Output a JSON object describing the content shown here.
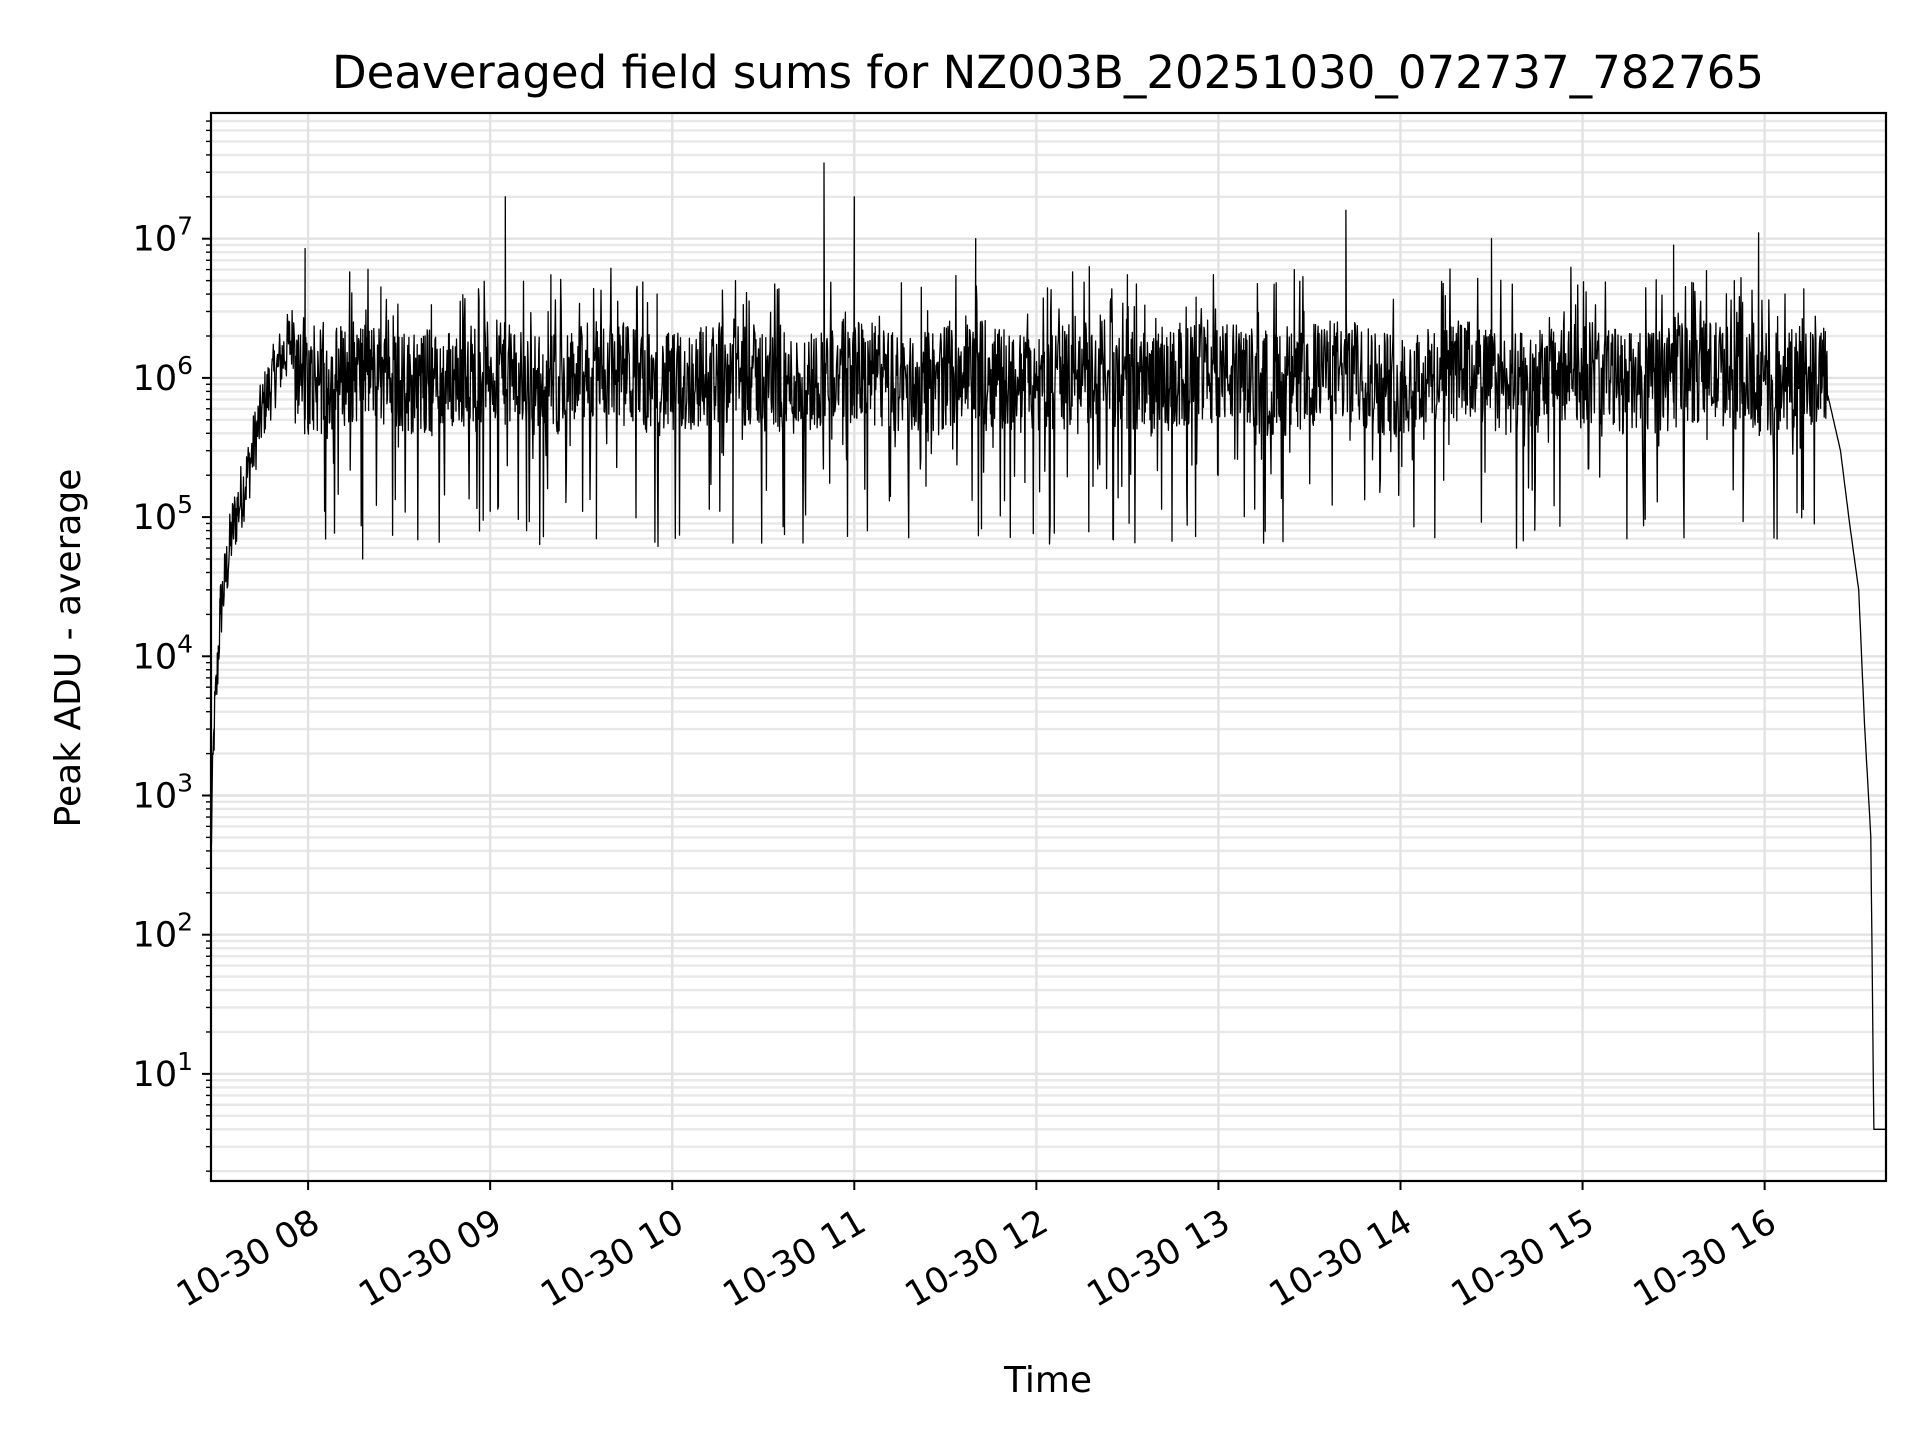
{
  "chart_data": {
    "type": "line",
    "title": "Deaveraged field sums for NZ003B_20251030_072737_782765",
    "xlabel": "Time",
    "ylabel": "Peak ADU - average",
    "y_scale": "log",
    "ylim": [
      1.7,
      80000000
    ],
    "xlim": [
      "2025-10-30T07:28",
      "2025-10-30T16:40"
    ],
    "grid": true,
    "x_ticks": [
      {
        "t": "2025-10-30T08:00",
        "label": "10-30 08"
      },
      {
        "t": "2025-10-30T09:00",
        "label": "10-30 09"
      },
      {
        "t": "2025-10-30T10:00",
        "label": "10-30 10"
      },
      {
        "t": "2025-10-30T11:00",
        "label": "10-30 11"
      },
      {
        "t": "2025-10-30T12:00",
        "label": "10-30 12"
      },
      {
        "t": "2025-10-30T13:00",
        "label": "10-30 13"
      },
      {
        "t": "2025-10-30T14:00",
        "label": "10-30 14"
      },
      {
        "t": "2025-10-30T15:00",
        "label": "10-30 15"
      },
      {
        "t": "2025-10-30T16:00",
        "label": "10-30 16"
      }
    ],
    "y_ticks": [
      {
        "value": 10,
        "base": "10",
        "exp": "1"
      },
      {
        "value": 100,
        "base": "10",
        "exp": "2"
      },
      {
        "value": 1000,
        "base": "10",
        "exp": "3"
      },
      {
        "value": 10000,
        "base": "10",
        "exp": "4"
      },
      {
        "value": 100000,
        "base": "10",
        "exp": "5"
      },
      {
        "value": 1000000,
        "base": "10",
        "exp": "6"
      },
      {
        "value": 10000000,
        "base": "10",
        "exp": "7"
      }
    ],
    "series": [
      {
        "color": "#000000",
        "points": [
          [
            "2025-10-30T07:28",
            400
          ],
          [
            "2025-10-30T07:29",
            3000
          ],
          [
            "2025-10-30T07:30",
            7000
          ],
          [
            "2025-10-30T07:31",
            20000
          ],
          [
            "2025-10-30T07:33",
            40000
          ],
          [
            "2025-10-30T07:35",
            80000
          ],
          [
            "2025-10-30T07:37",
            120000
          ],
          [
            "2025-10-30T07:40",
            200000
          ],
          [
            "2025-10-30T07:43",
            400000
          ],
          [
            "2025-10-30T07:46",
            700000
          ],
          [
            "2025-10-30T07:50",
            1200000
          ],
          [
            "2025-10-30T07:55",
            2000000
          ],
          [
            "2025-10-30T07:59",
            8500000
          ],
          [
            "2025-10-30T08:05",
            2500000
          ],
          [
            "2025-10-30T08:18",
            50000
          ],
          [
            "2025-10-30T08:24",
            4500000
          ],
          [
            "2025-10-30T08:40",
            2200000
          ],
          [
            "2025-10-30T09:00",
            110000
          ],
          [
            "2025-10-30T09:05",
            20000000
          ],
          [
            "2025-10-30T09:12",
            80000
          ],
          [
            "2025-10-30T09:20",
            5500000
          ],
          [
            "2025-10-30T09:35",
            70000
          ],
          [
            "2025-10-30T09:55",
            4000000
          ],
          [
            "2025-10-30T10:20",
            65000
          ],
          [
            "2025-10-30T10:37",
            75000
          ],
          [
            "2025-10-30T10:50",
            35000000
          ],
          [
            "2025-10-30T11:00",
            20000000
          ],
          [
            "2025-10-30T11:40",
            10000000
          ],
          [
            "2025-10-30T12:00",
            900000
          ],
          [
            "2025-10-30T12:30",
            5500000
          ],
          [
            "2025-10-30T13:00",
            1000000
          ],
          [
            "2025-10-30T13:25",
            6000000
          ],
          [
            "2025-10-30T13:42",
            16000000
          ],
          [
            "2025-10-30T14:00",
            1100000
          ],
          [
            "2025-10-30T14:30",
            10000000
          ],
          [
            "2025-10-30T15:00",
            1200000
          ],
          [
            "2025-10-30T15:30",
            9000000
          ],
          [
            "2025-10-30T15:50",
            5000000
          ],
          [
            "2025-10-30T15:58",
            11000000
          ],
          [
            "2025-10-30T16:10",
            1200000
          ],
          [
            "2025-10-30T16:20",
            900000
          ],
          [
            "2025-10-30T16:25",
            300000
          ],
          [
            "2025-10-30T16:28",
            90000
          ],
          [
            "2025-10-30T16:31",
            30000
          ],
          [
            "2025-10-30T16:33",
            3000
          ],
          [
            "2025-10-30T16:35",
            500
          ],
          [
            "2025-10-30T16:36",
            4
          ],
          [
            "2025-10-30T16:40",
            4
          ]
        ]
      }
    ]
  }
}
